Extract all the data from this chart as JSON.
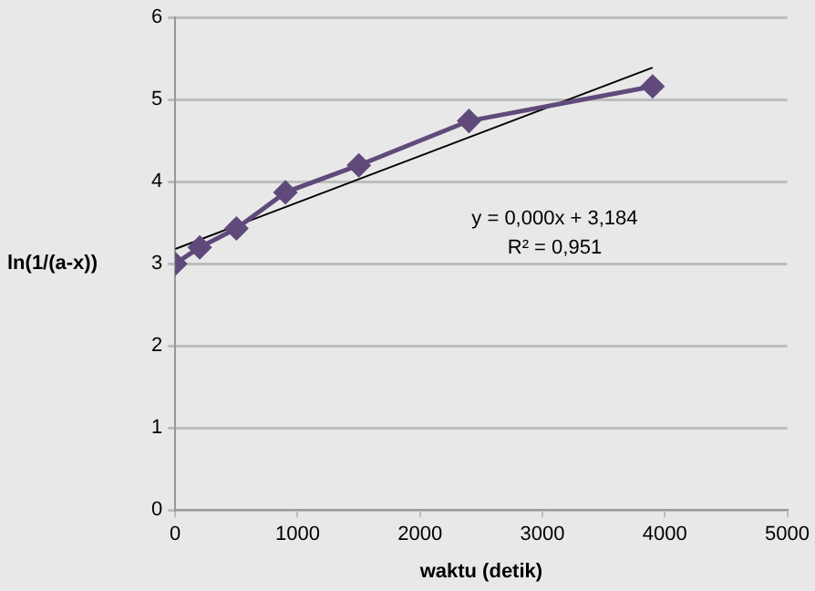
{
  "chart_data": {
    "type": "line",
    "xlabel": "waktu (detik)",
    "ylabel": "ln(1/(a-x))",
    "x": [
      0,
      200,
      500,
      900,
      1500,
      2400,
      3900
    ],
    "series": [
      {
        "color": "#604a7b",
        "values": [
          3.0,
          3.2,
          3.43,
          3.87,
          4.2,
          4.74,
          5.16
        ],
        "marker": "diamond"
      },
      {
        "type": "line",
        "color": "#000000",
        "x": [
          0,
          3900
        ],
        "values": [
          3.18,
          5.39
        ],
        "marker": "none"
      }
    ],
    "xlim": [
      0,
      5000
    ],
    "xticks": [
      0,
      1000,
      2000,
      3000,
      4000,
      5000
    ],
    "ylim": [
      0,
      6
    ],
    "yticks": [
      0,
      1,
      2,
      3,
      4,
      5,
      6
    ],
    "grid": "y",
    "legend": false,
    "annotations": [
      "y = 0,000x + 3,184",
      "R² = 0,951"
    ]
  }
}
